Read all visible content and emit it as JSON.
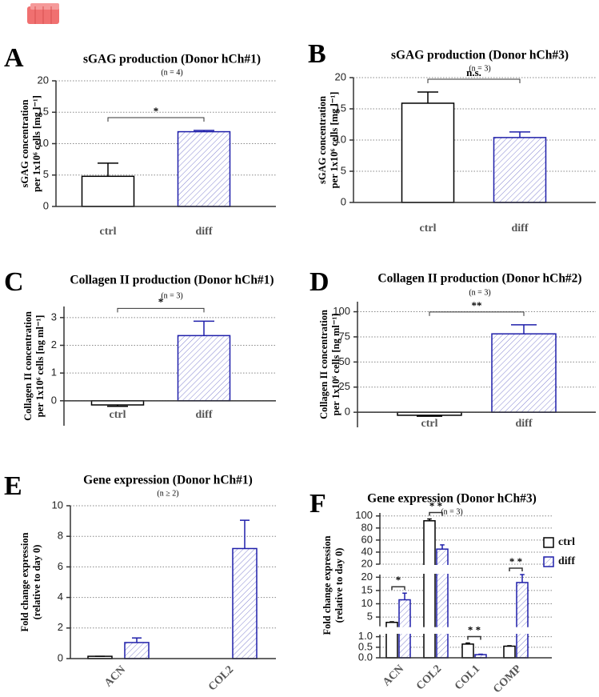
{
  "chart_data": [
    {
      "type": "bar",
      "panel": "A",
      "title": "sGAG production (Donor hCh#1)",
      "subtitle": "(n = 4)",
      "ylabel": [
        "sGAG concentration",
        "per 1x10⁶ cells [mg l⁻¹]"
      ],
      "categories": [
        "ctrl",
        "diff"
      ],
      "values": [
        4.8,
        11.9
      ],
      "errors": [
        2.1,
        0.2
      ],
      "colors": [
        "#000000",
        "#1f1faa"
      ],
      "hatch": [
        false,
        true
      ],
      "significance": "*",
      "ylim": [
        0,
        20
      ],
      "yticks": [
        0,
        5,
        10,
        15,
        20
      ],
      "grid": true
    },
    {
      "type": "bar",
      "panel": "B",
      "title": "sGAG production (Donor hCh#3)",
      "subtitle": "(n = 3)",
      "ylabel": [
        "sGAG concentration",
        "per 1x10⁶ cells [mg l⁻¹]"
      ],
      "categories": [
        "ctrl",
        "diff"
      ],
      "values": [
        15.9,
        10.4
      ],
      "errors": [
        1.8,
        0.9
      ],
      "colors": [
        "#000000",
        "#1f1faa"
      ],
      "hatch": [
        false,
        true
      ],
      "significance": "n.s.",
      "ylim": [
        0,
        20
      ],
      "yticks": [
        0,
        5,
        10,
        15,
        20
      ],
      "grid": true
    },
    {
      "type": "bar",
      "panel": "C",
      "title": "Collagen II production (Donor hCh#1)",
      "subtitle": "(n = 3)",
      "ylabel": [
        "Collagen II concentration",
        "per 1x10⁶ cells [ng ml⁻¹]"
      ],
      "categories": [
        "ctrl",
        "diff"
      ],
      "values": [
        -0.15,
        2.35
      ],
      "errors": [
        0.05,
        0.52
      ],
      "colors": [
        "#000000",
        "#1f1faa"
      ],
      "hatch": [
        false,
        true
      ],
      "significance": "*",
      "ylim": [
        -0.9,
        3.4
      ],
      "yticks": [
        0,
        1,
        2,
        3
      ],
      "grid": true
    },
    {
      "type": "bar",
      "panel": "D",
      "title": "Collagen II production (Donor hCh#2)",
      "subtitle": "(n = 3)",
      "ylabel": [
        "Collagen II concentration",
        "per 1x10⁶ cells [ng ml⁻¹]"
      ],
      "categories": [
        "ctrl",
        "diff"
      ],
      "values": [
        -3,
        78
      ],
      "errors": [
        1,
        9
      ],
      "colors": [
        "#000000",
        "#1f1faa"
      ],
      "hatch": [
        false,
        true
      ],
      "significance": "**",
      "ylim": [
        -15,
        110
      ],
      "yticks": [
        0,
        25,
        50,
        75,
        100
      ],
      "grid": true
    },
    {
      "type": "grouped_bar",
      "panel": "E",
      "title": "Gene expression  (Donor hCh#1)",
      "subtitle": "(n ≥ 2)",
      "ylabel": [
        "Fold change expression",
        "(relative to day 0)"
      ],
      "categories": [
        "ACN",
        "COL2"
      ],
      "series": [
        {
          "color": "#000000",
          "hatch": false,
          "values": [
            0.15,
            null
          ],
          "errors": [
            0,
            null
          ]
        },
        {
          "color": "#1f1faa",
          "hatch": true,
          "values": [
            1.05,
            7.2
          ],
          "errors": [
            0.3,
            1.85
          ]
        }
      ],
      "ylim": [
        0,
        10
      ],
      "yticks": [
        0,
        2,
        4,
        6,
        8,
        10
      ],
      "grid": true
    },
    {
      "type": "grouped_bar",
      "panel": "F",
      "title": "Gene expression  (Donor hCh#3)",
      "subtitle": "(n = 3)",
      "ylabel": [
        "Fold change expression",
        "(relative to day 0)"
      ],
      "categories": [
        "ACN",
        "COL2",
        "COL1",
        "COMP"
      ],
      "series": [
        {
          "name": "ctrl",
          "color": "#000000",
          "hatch": false,
          "values": [
            3,
            92,
            0.65,
            0.55
          ],
          "errors": [
            0.2,
            3,
            0.05,
            0.02
          ]
        },
        {
          "name": "diff",
          "color": "#1f1faa",
          "hatch": true,
          "values": [
            11.5,
            45,
            0.15,
            18
          ],
          "errors": [
            2.5,
            7,
            0.02,
            3
          ]
        }
      ],
      "significance": [
        "*",
        "* *",
        "* *",
        "* *"
      ],
      "yaxis_segments": [
        {
          "ylim": [
            0,
            1.1
          ],
          "yticks": [
            {
              "value": 0,
              "label": "0.0"
            },
            {
              "value": 0.5,
              "label": "0.5"
            },
            {
              "value": 1,
              "label": "1.0"
            }
          ]
        },
        {
          "ylim": [
            1.5,
            21
          ],
          "yticks": [
            5,
            10,
            15,
            20
          ]
        },
        {
          "ylim": [
            20,
            105
          ],
          "yticks": [
            20,
            40,
            60,
            80,
            100
          ]
        }
      ],
      "legend": "upper right",
      "grid": true
    }
  ]
}
